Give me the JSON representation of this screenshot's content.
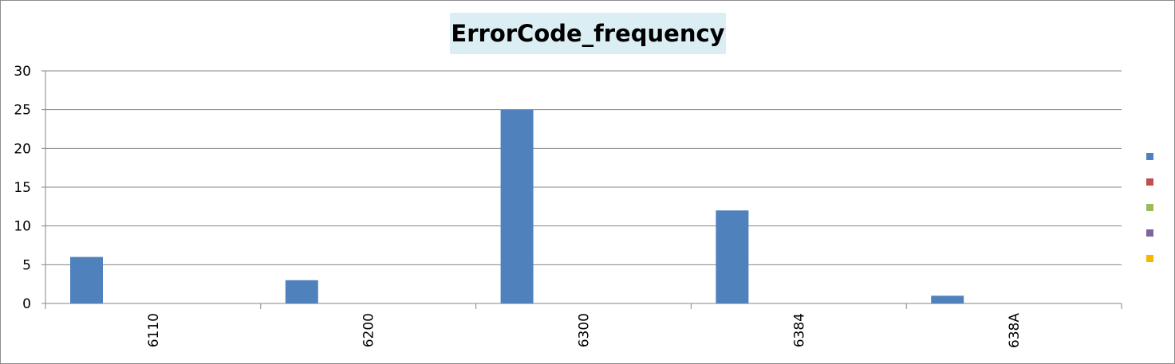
{
  "chart_data": {
    "type": "bar",
    "title": "ErrorCode_frequency",
    "categories": [
      "6110",
      "6200",
      "6300",
      "6384",
      "638A"
    ],
    "series": [
      {
        "values": [
          6,
          3,
          25,
          12,
          1
        ],
        "color": "#4f81bd"
      }
    ],
    "ylim": [
      0,
      30
    ],
    "yticks": [
      0,
      5,
      10,
      15,
      20,
      25,
      30
    ],
    "grid": true,
    "legend": {
      "placement": "right",
      "colors": [
        "#4f81bd",
        "#c0504d",
        "#9bbb59",
        "#8064a2",
        "#f6b700"
      ]
    }
  }
}
